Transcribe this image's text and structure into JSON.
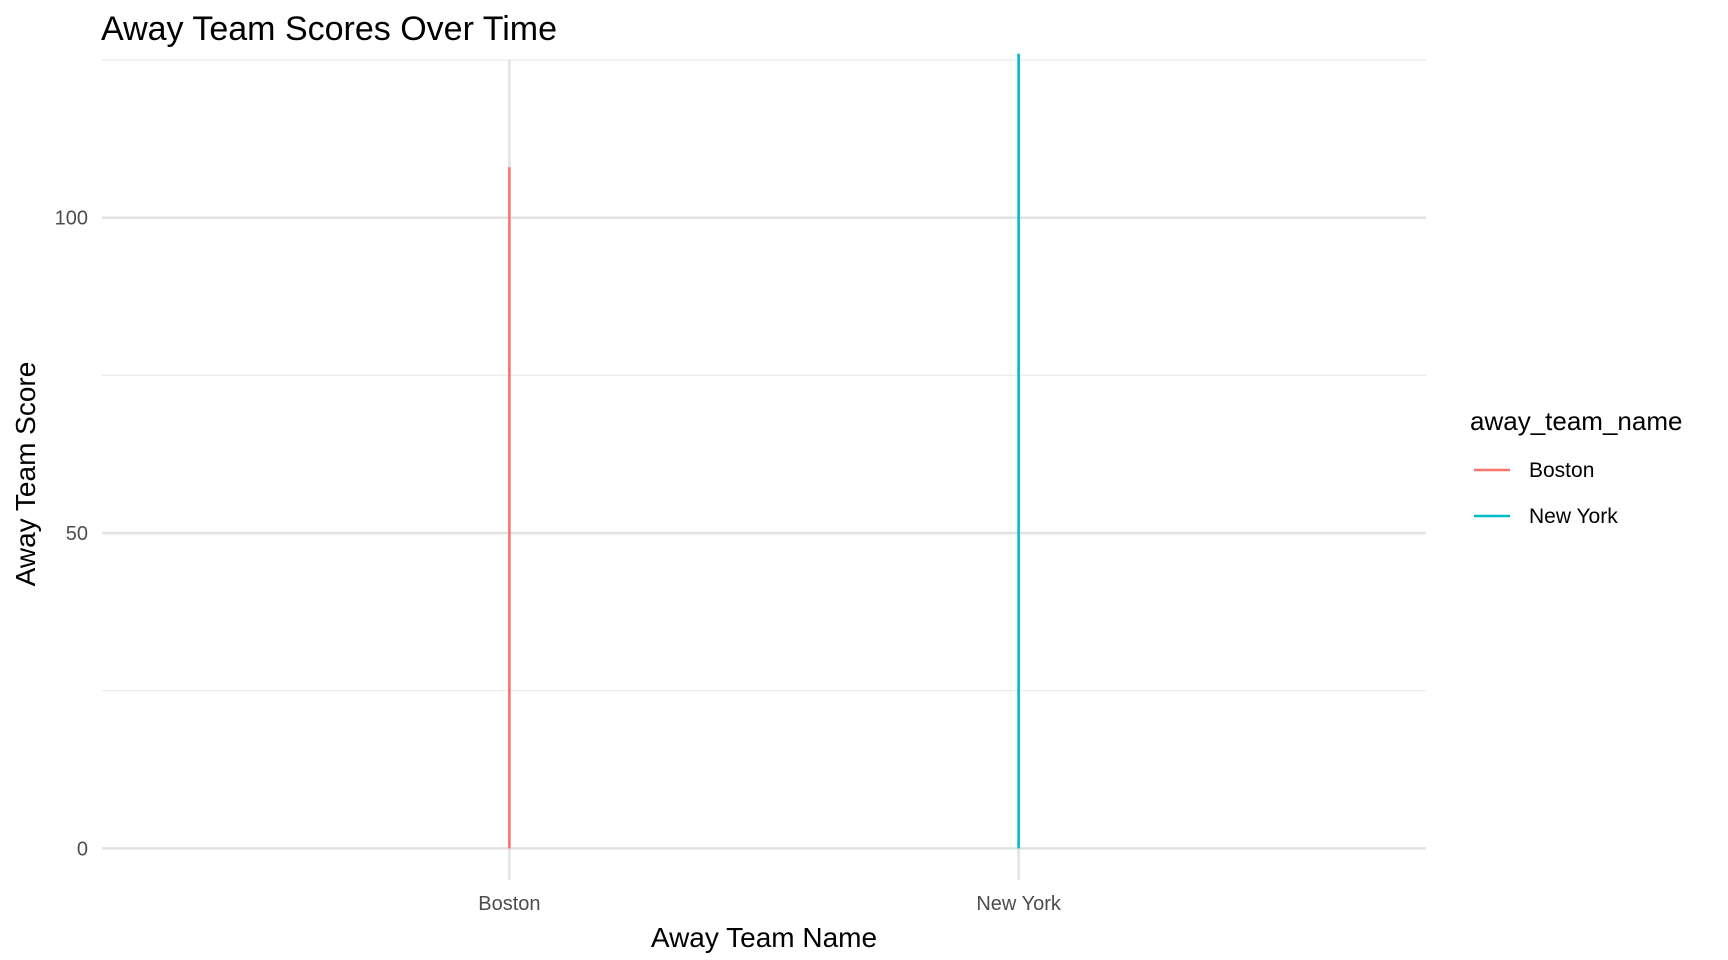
{
  "chart_data": {
    "type": "line",
    "title": "Away Team Scores Over Time",
    "xlabel": "Away Team Name",
    "ylabel": "Away Team Score",
    "categories": [
      "Boston",
      "New York"
    ],
    "ylim": [
      -5,
      125
    ],
    "yticks": [
      0,
      50,
      100
    ],
    "grid": true,
    "legend": {
      "title": "away_team_name",
      "position": "right"
    },
    "series": [
      {
        "name": "Boston",
        "color": "#F8766D",
        "x": "Boston",
        "min": 0,
        "max": 108
      },
      {
        "name": "New York",
        "color": "#00BFC4",
        "x": "New York",
        "min": 0,
        "max": 126
      }
    ]
  }
}
